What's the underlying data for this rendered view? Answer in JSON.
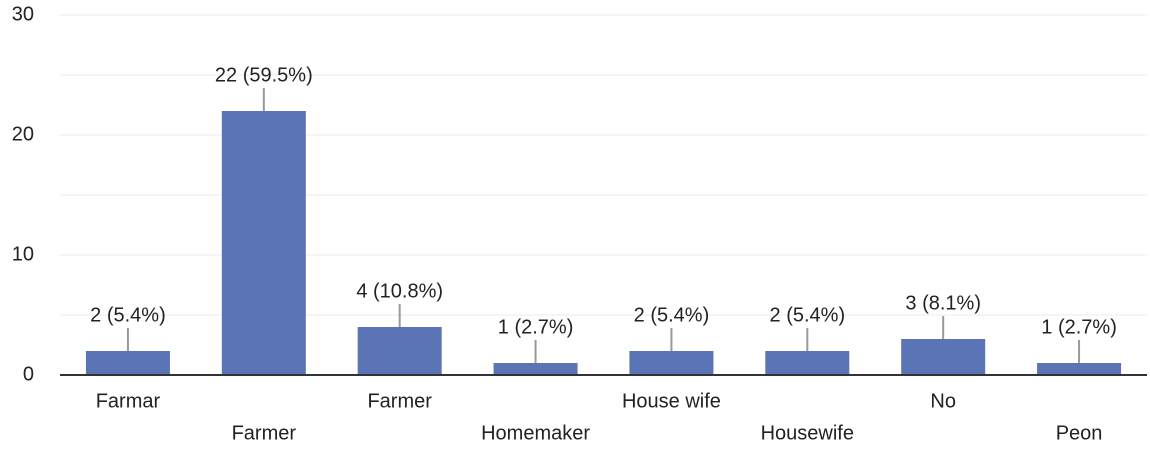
{
  "chart_data": {
    "type": "bar",
    "categories": [
      "Farmar",
      "Farmer",
      "Farmer",
      "Homemaker",
      "House wife",
      "Housewife",
      "No",
      "Peon"
    ],
    "values": [
      2,
      22,
      4,
      1,
      2,
      2,
      3,
      1
    ],
    "value_labels": [
      "2 (5.4%)",
      "22 (59.5%)",
      "4 (10.8%)",
      "1 (2.7%)",
      "2 (5.4%)",
      "2 (5.4%)",
      "3 (8.1%)",
      "1 (2.7%)"
    ],
    "color": "#5b74b5",
    "ylim": [
      0,
      30
    ],
    "yticks": [
      0,
      10,
      20,
      30
    ],
    "minor_yticks": [
      5,
      15,
      25
    ],
    "grid": true
  }
}
